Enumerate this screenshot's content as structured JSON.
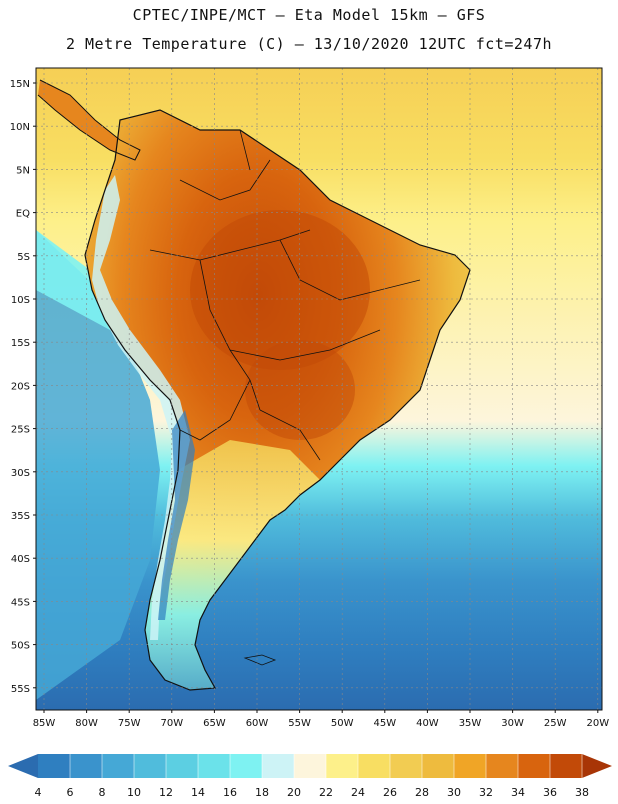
{
  "header": {
    "line1": "CPTEC/INPE/MCT –  Eta Model 15km – GFS",
    "line2": "2 Metre Temperature (C) – 13/10/2020 12UTC fct=247h"
  },
  "axes": {
    "lat_labels": [
      "15N",
      "10N",
      "5N",
      "EQ",
      "5S",
      "10S",
      "15S",
      "20S",
      "25S",
      "30S",
      "35S",
      "40S",
      "45S",
      "50S",
      "55S"
    ],
    "lon_labels": [
      "85W",
      "80W",
      "75W",
      "70W",
      "65W",
      "60W",
      "55W",
      "50W",
      "45W",
      "40W",
      "35W",
      "30W",
      "25W",
      "20W"
    ]
  },
  "legend": {
    "ticks": [
      "4",
      "6",
      "8",
      "10",
      "12",
      "14",
      "16",
      "18",
      "20",
      "22",
      "24",
      "26",
      "28",
      "30",
      "32",
      "34",
      "36",
      "38"
    ],
    "colors": [
      "#2b6cb0",
      "#2f7fc0",
      "#3a93cc",
      "#45a8d6",
      "#50bcdc",
      "#5ccfe2",
      "#6be2ea",
      "#7ef2f2",
      "#cdf3f6",
      "#fdf5dc",
      "#fdf08a",
      "#f8de62",
      "#f2cc52",
      "#eebb3e",
      "#f0a526",
      "#e6861e",
      "#d8640e",
      "#c24a08",
      "#a83506"
    ],
    "left_arrow_color": "#2b6cb0",
    "right_arrow_color": "#a83506"
  },
  "colors": {
    "ocean_warm": "#f6cf55",
    "ocean_mid": "#fdf08a",
    "ocean_cool": "#7ef2f2",
    "ocean_cold": "#50bcdc",
    "ocean_deep": "#2f7fc0",
    "land_hot": "#c24a08",
    "land_warm": "#e6861e",
    "land_mild": "#eebb3e",
    "andes": "#cdf3f6"
  }
}
